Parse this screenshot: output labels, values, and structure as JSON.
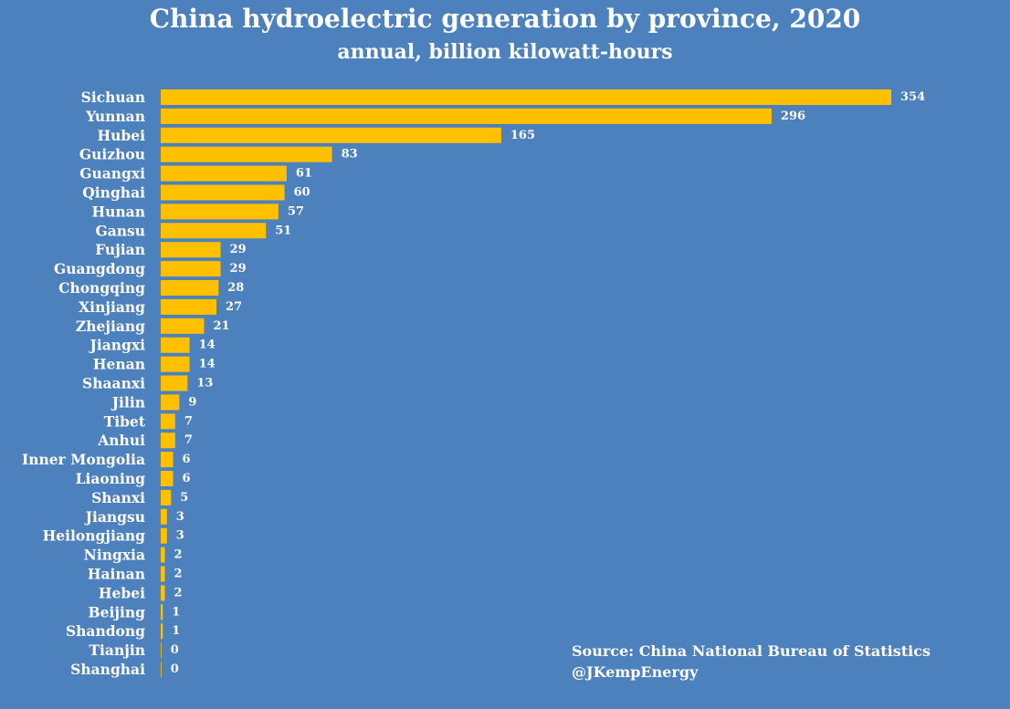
{
  "chart_data": {
    "type": "bar",
    "orientation": "horizontal",
    "title": "China hydroelectric generation by province, 2020",
    "subtitle": "annual, billion kilowatt-hours",
    "categories": [
      "Sichuan",
      "Yunnan",
      "Hubei",
      "Guizhou",
      "Guangxi",
      "Qinghai",
      "Hunan",
      "Gansu",
      "Fujian",
      "Guangdong",
      "Chongqing",
      "Xinjiang",
      "Zhejiang",
      "Jiangxi",
      "Henan",
      "Shaanxi",
      "Jilin",
      "Tibet",
      "Anhui",
      "Inner Mongolia",
      "Liaoning",
      "Shanxi",
      "Jiangsu",
      "Heilongjiang",
      "Ningxia",
      "Hainan",
      "Hebei",
      "Beijing",
      "Shandong",
      "Tianjin",
      "Shanghai"
    ],
    "values": [
      354,
      296,
      165,
      83,
      61,
      60,
      57,
      51,
      29,
      29,
      28,
      27,
      21,
      14,
      14,
      13,
      9,
      7,
      7,
      6,
      6,
      5,
      3,
      3,
      2,
      2,
      2,
      1,
      1,
      0,
      0
    ],
    "data_labels": [
      "354",
      "296",
      "165",
      "83",
      "61",
      "60",
      "57",
      "51",
      "29",
      "29",
      "28",
      "27",
      "21",
      "14",
      "14",
      "13",
      "9",
      "7",
      "7",
      "6",
      "6",
      "5",
      "3",
      "3",
      "2",
      "2",
      "2",
      "1",
      "1",
      "0",
      "0"
    ],
    "bar_color": "#ffc000",
    "background_color": "#4d81bd",
    "grid": false,
    "legend": "none",
    "source_lines": [
      "Source: China National Bureau of Statistics",
      "@JKempEnergy"
    ]
  }
}
